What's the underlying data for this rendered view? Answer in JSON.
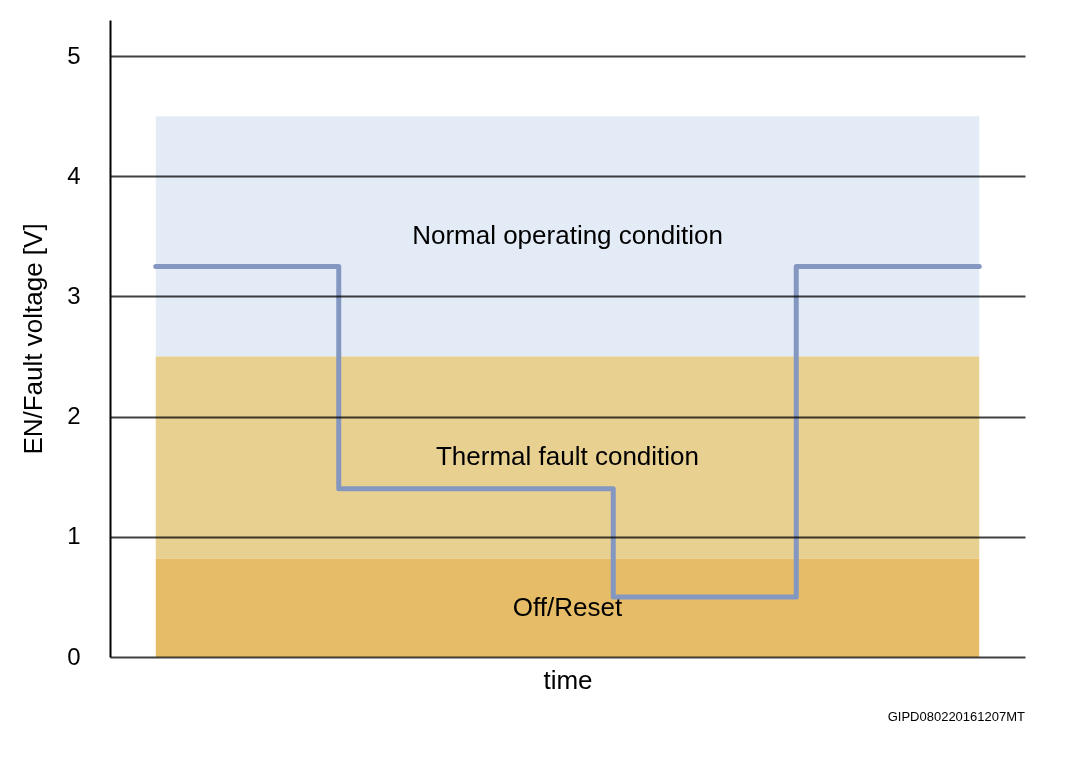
{
  "chart_data": {
    "type": "step",
    "xlabel": "time",
    "ylabel": "EN/Fault voltage [V]",
    "categories": [
      null,
      null,
      null,
      null,
      null,
      null,
      null,
      null,
      null,
      null
    ],
    "series": [
      {
        "color": "#8497c1",
        "values": [
          3.25,
          3.25,
          1.4,
          1.4,
          1.4,
          0.5,
          0.5,
          3.25,
          3.25,
          3.25
        ]
      }
    ],
    "ylim": [
      0,
      5.3
    ],
    "yticks": [
      0,
      1,
      2,
      3,
      4,
      5
    ],
    "grid": "y",
    "tick_labels": "y",
    "bands": [
      {
        "axis": "y",
        "from": 2.5,
        "to": 4.5,
        "label": "Normal operating condition",
        "color": "#e3ecf6"
      },
      {
        "axis": "y",
        "from": 0.82,
        "to": 2.5,
        "label": "Thermal fault condition",
        "color": "#e8d091"
      },
      {
        "axis": "y",
        "from": 0,
        "to": 0.82,
        "label": "Off/Reset",
        "color": "#e6bd66"
      }
    ],
    "annotations": [
      "GIPD080220161207MT"
    ]
  }
}
